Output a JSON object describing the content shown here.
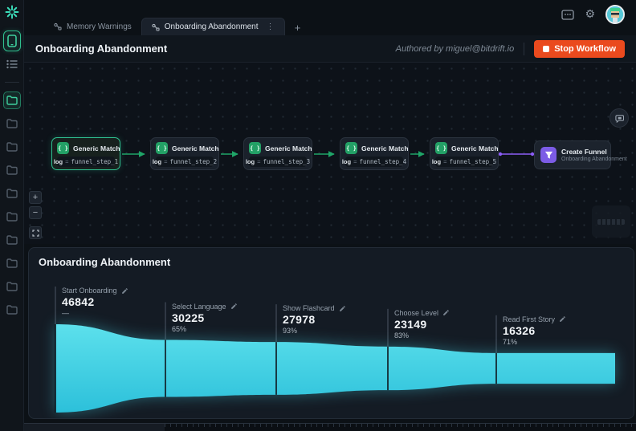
{
  "tabbar": {
    "tabs": [
      {
        "label": "Memory Warnings"
      },
      {
        "label": "Onboarding Abandonment"
      }
    ],
    "menu_glyph": "⋮",
    "add_glyph": "+"
  },
  "header": {
    "title": "Onboarding Abandonment",
    "authored_by": "Authored by miguel@bitdrift.io",
    "stop_label": "Stop Workflow"
  },
  "workflow": {
    "nodes": [
      {
        "title": "Generic Match",
        "key": "log",
        "op": "=",
        "value": "funnel_step_1"
      },
      {
        "title": "Generic Match",
        "key": "log",
        "op": "=",
        "value": "funnel_step_2"
      },
      {
        "title": "Generic Match",
        "key": "log",
        "op": "=",
        "value": "funnel_step_3"
      },
      {
        "title": "Generic Match",
        "key": "log",
        "op": "=",
        "value": "funnel_step_4"
      },
      {
        "title": "Generic Match",
        "key": "log",
        "op": "=",
        "value": "funnel_step_5"
      }
    ],
    "node_icon_glyph": "{ }",
    "output": {
      "title": "Create Funnel",
      "subtitle": "Onboarding Abandonment"
    }
  },
  "canvas": {
    "zoom_in": "+",
    "zoom_out": "−"
  },
  "funnel_panel": {
    "title": "Onboarding Abandonment"
  },
  "chart_data": {
    "type": "funnel",
    "title": "Onboarding Abandonment",
    "stages": [
      "Start Onboarding",
      "Select Language",
      "Show Flashcard",
      "Choose Level",
      "Read First Story"
    ],
    "values": [
      46842,
      30225,
      27978,
      23149,
      16326
    ],
    "conversion_from_previous": [
      "—",
      "65%",
      "93%",
      "83%",
      "71%"
    ],
    "colors": {
      "fill_top": "#5ce0ec",
      "fill_bottom": "#2cc0da",
      "glow": "#46d4e8"
    }
  },
  "colors": {
    "accent_teal": "#2fbf8f",
    "danger": "#ea4a1e",
    "purple": "#8b5cf6",
    "edge_green": "#1fa568"
  }
}
